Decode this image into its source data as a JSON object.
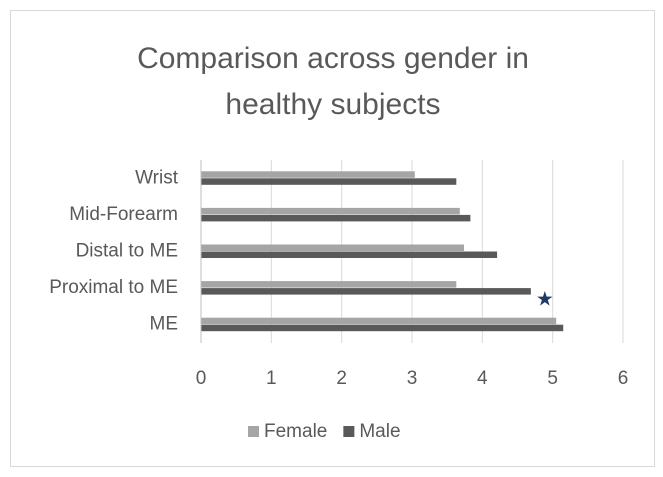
{
  "chart_data": {
    "type": "hbar",
    "title": "Comparison across gender in healthy subjects",
    "categories": [
      "ME",
      "Proximal to ME",
      "Distal to ME",
      "Mid-Forearm",
      "Wrist"
    ],
    "series": [
      {
        "name": "Female",
        "color": "#a5a5a5",
        "values": [
          5.05,
          3.63,
          3.74,
          3.68,
          3.04
        ]
      },
      {
        "name": "Male",
        "color": "#595959",
        "values": [
          5.15,
          4.69,
          4.21,
          3.83,
          3.63
        ]
      }
    ],
    "annotation": "★",
    "annotation_color": "#1f3864",
    "xlim": [
      0,
      6
    ],
    "xticks": [
      0,
      1,
      2,
      3,
      4,
      5,
      6
    ],
    "grid": true,
    "legend": "bottom"
  }
}
